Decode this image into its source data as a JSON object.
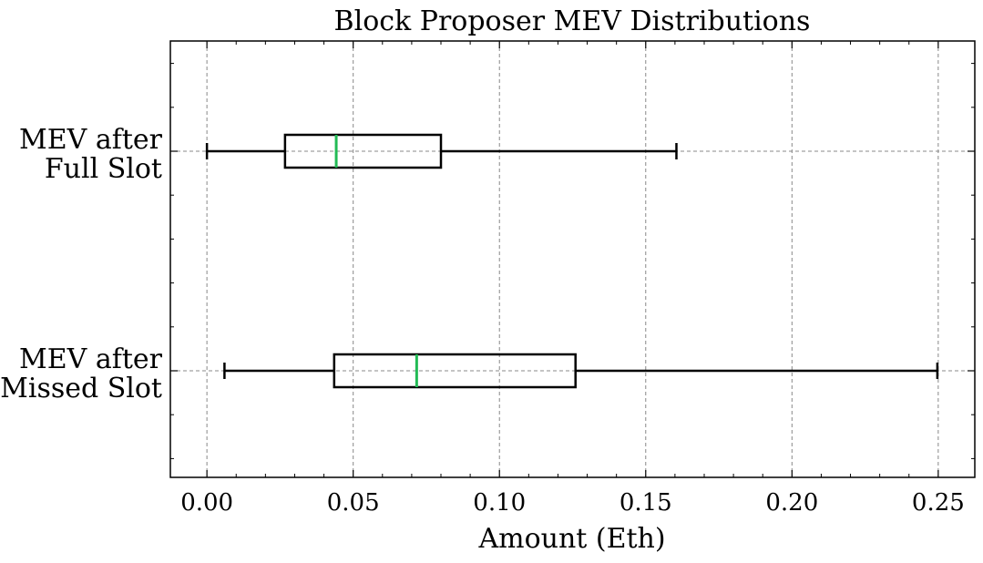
{
  "chart_data": {
    "type": "boxplot",
    "orientation": "horizontal",
    "title": "Block Proposer MEV Distributions",
    "xlabel": "Amount (Eth)",
    "ylabel": "",
    "xlim": [
      -0.0125,
      0.2625
    ],
    "xticks": [
      0.0,
      0.05,
      0.1,
      0.15,
      0.2,
      0.25
    ],
    "xtick_labels": [
      "0.00",
      "0.05",
      "0.10",
      "0.15",
      "0.20",
      "0.25"
    ],
    "grid": true,
    "median_color": "#22bb55",
    "series": [
      {
        "label_lines": [
          "MEV after",
          "Full Slot"
        ],
        "whisker_low": 0.0,
        "q1": 0.0267,
        "median": 0.0442,
        "q3": 0.08,
        "whisker_high": 0.1605
      },
      {
        "label_lines": [
          "MEV after",
          "Missed Slot"
        ],
        "whisker_low": 0.006,
        "q1": 0.0435,
        "median": 0.0717,
        "q3": 0.126,
        "whisker_high": 0.2497
      }
    ]
  }
}
